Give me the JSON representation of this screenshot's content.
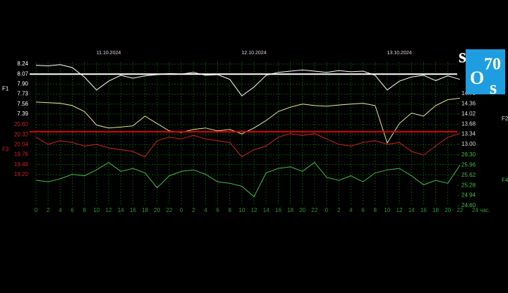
{
  "chart_data": {
    "type": "multi-axis-line",
    "x": [
      0,
      2,
      4,
      6,
      8,
      10,
      12,
      14,
      16,
      18,
      20,
      22,
      24,
      26,
      28,
      30,
      32,
      34,
      36,
      38,
      40,
      42,
      44,
      46,
      48,
      50,
      52,
      54,
      56,
      58,
      60,
      62,
      64,
      66,
      68,
      70
    ],
    "xlim": [
      0,
      72
    ],
    "xticks": [
      0,
      2,
      4,
      6,
      8,
      10,
      12,
      14,
      16,
      18,
      20,
      22,
      {
        "value": 24,
        "label": "0"
      },
      {
        "value": 26,
        "label": "2"
      },
      {
        "value": 28,
        "label": "4"
      },
      {
        "value": 30,
        "label": "6"
      },
      {
        "value": 32,
        "label": "8"
      },
      {
        "value": 34,
        "label": "10"
      },
      {
        "value": 36,
        "label": "12"
      },
      {
        "value": 38,
        "label": "14"
      },
      {
        "value": 40,
        "label": "16"
      },
      {
        "value": 42,
        "label": "18"
      },
      {
        "value": 44,
        "label": "20"
      },
      {
        "value": 46,
        "label": "22"
      },
      {
        "value": 48,
        "label": "0"
      },
      {
        "value": 50,
        "label": "2"
      },
      {
        "value": 52,
        "label": "4"
      },
      {
        "value": 54,
        "label": "6"
      },
      {
        "value": 56,
        "label": "8"
      },
      {
        "value": 58,
        "label": "10"
      },
      {
        "value": 60,
        "label": "12"
      },
      {
        "value": 62,
        "label": "14"
      },
      {
        "value": 64,
        "label": "16"
      },
      {
        "value": 66,
        "label": "18"
      },
      {
        "value": 68,
        "label": "20"
      },
      {
        "value": 70,
        "label": "22"
      },
      {
        "value": 72,
        "label": "24 час."
      }
    ],
    "x_top_ticks": [
      {
        "value": 12,
        "label": "11.10.2024"
      },
      {
        "value": 36,
        "label": "12.10.2024"
      },
      {
        "value": 60,
        "label": "13.10.2024"
      }
    ],
    "grid": true,
    "series": [
      {
        "name": "F1",
        "side": "left",
        "color": "#ffffff",
        "ylim": [
          7.39,
          8.24
        ],
        "yticks": [
          8.24,
          8.07,
          7.9,
          7.73,
          7.56,
          7.39
        ],
        "tick_labels": [
          "8.24",
          "8.07",
          "7.90",
          "7.73",
          "7.56",
          "7.39"
        ],
        "threshold": 8.07,
        "threshold_color": "#ffffff",
        "values": [
          8.22,
          8.21,
          8.23,
          8.18,
          8.02,
          7.8,
          7.95,
          8.05,
          8.0,
          8.04,
          8.06,
          8.08,
          8.07,
          8.1,
          8.05,
          8.06,
          7.98,
          7.7,
          7.85,
          8.05,
          8.1,
          8.12,
          8.14,
          8.12,
          8.1,
          8.13,
          8.11,
          8.12,
          8.05,
          7.8,
          7.95,
          8.02,
          8.05,
          7.96,
          8.04,
          7.98
        ]
      },
      {
        "name": "F2",
        "side": "right",
        "color": "#e8e890",
        "ylim": [
          13.0,
          14.7
        ],
        "yticks": [
          14.7,
          14.36,
          14.02,
          13.68,
          13.34,
          13.0
        ],
        "tick_labels": [
          "14.70",
          "14.36",
          "14.02",
          "13.68",
          "13.34",
          "13.00"
        ],
        "values": [
          14.42,
          14.4,
          14.38,
          14.3,
          14.1,
          13.65,
          13.55,
          13.58,
          13.62,
          13.95,
          13.7,
          13.45,
          13.4,
          13.5,
          13.55,
          13.45,
          13.5,
          13.35,
          13.55,
          13.8,
          14.1,
          14.25,
          14.35,
          14.3,
          14.28,
          14.32,
          14.35,
          14.38,
          14.3,
          13.05,
          13.7,
          14.05,
          13.95,
          14.3,
          14.5,
          14.55
        ]
      },
      {
        "name": "F3",
        "side": "left",
        "color": "#d02020",
        "ylim": [
          19.2,
          20.6
        ],
        "yticks": [
          20.6,
          20.32,
          20.04,
          19.76,
          19.48,
          19.2
        ],
        "tick_labels": [
          "20.60",
          "20.32",
          "20.04",
          "19.76",
          "19.48",
          "19.20"
        ],
        "threshold": 20.4,
        "threshold_color": "#e00000",
        "values": [
          20.25,
          20.05,
          20.15,
          20.1,
          20.0,
          20.05,
          19.95,
          19.9,
          19.85,
          19.7,
          20.15,
          20.25,
          20.2,
          20.3,
          20.2,
          20.15,
          20.1,
          19.7,
          19.9,
          20.0,
          20.25,
          20.35,
          20.3,
          20.35,
          20.2,
          20.05,
          20.0,
          20.1,
          20.15,
          20.05,
          20.1,
          19.85,
          19.75,
          20.0,
          20.25,
          20.35
        ]
      },
      {
        "name": "F4",
        "side": "right",
        "color": "#40c040",
        "ylim": [
          24.6,
          26.3
        ],
        "yticks": [
          26.3,
          25.96,
          25.62,
          25.28,
          24.94,
          24.6
        ],
        "tick_labels": [
          "26.30",
          "25.96",
          "25.62",
          "25.28",
          "24.94",
          "24.60"
        ],
        "values": [
          25.45,
          25.4,
          25.5,
          25.65,
          25.6,
          25.8,
          26.05,
          25.75,
          25.85,
          25.7,
          25.2,
          25.6,
          25.75,
          25.8,
          25.65,
          25.4,
          25.35,
          25.25,
          24.9,
          25.7,
          25.85,
          25.9,
          25.75,
          26.05,
          25.55,
          25.45,
          25.6,
          25.4,
          25.7,
          25.8,
          25.85,
          25.6,
          25.3,
          25.45,
          25.35,
          25.95
        ]
      }
    ]
  },
  "logo": [
    "s",
    "70",
    "O",
    "s"
  ]
}
